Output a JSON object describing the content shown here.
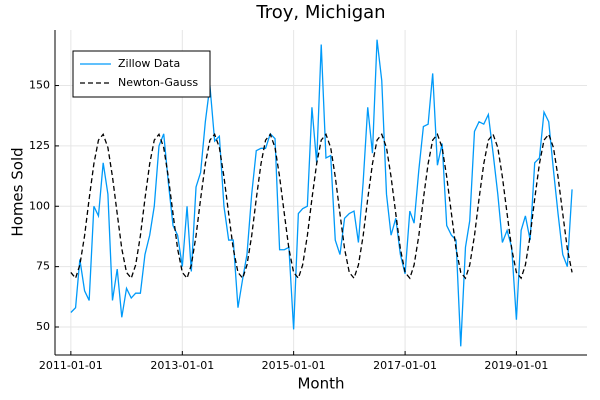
{
  "chart_data": {
    "type": "line",
    "title": "Troy, Michigan",
    "x_label": "Month",
    "y_label": "Homes Sold",
    "x": [
      "2011-01-01",
      "2011-02-01",
      "2011-03-01",
      "2011-04-01",
      "2011-05-01",
      "2011-06-01",
      "2011-07-01",
      "2011-08-01",
      "2011-09-01",
      "2011-10-01",
      "2011-11-01",
      "2011-12-01",
      "2012-01-01",
      "2012-02-01",
      "2012-03-01",
      "2012-04-01",
      "2012-05-01",
      "2012-06-01",
      "2012-07-01",
      "2012-08-01",
      "2012-09-01",
      "2012-10-01",
      "2012-11-01",
      "2012-12-01",
      "2013-01-01",
      "2013-02-01",
      "2013-03-01",
      "2013-04-01",
      "2013-05-01",
      "2013-06-01",
      "2013-07-01",
      "2013-08-01",
      "2013-09-01",
      "2013-10-01",
      "2013-11-01",
      "2013-12-01",
      "2014-01-01",
      "2014-02-01",
      "2014-03-01",
      "2014-04-01",
      "2014-05-01",
      "2014-06-01",
      "2014-07-01",
      "2014-08-01",
      "2014-09-01",
      "2014-10-01",
      "2014-11-01",
      "2014-12-01",
      "2015-01-01",
      "2015-02-01",
      "2015-03-01",
      "2015-04-01",
      "2015-05-01",
      "2015-06-01",
      "2015-07-01",
      "2015-08-01",
      "2015-09-01",
      "2015-10-01",
      "2015-11-01",
      "2015-12-01",
      "2016-01-01",
      "2016-02-01",
      "2016-03-01",
      "2016-04-01",
      "2016-05-01",
      "2016-06-01",
      "2016-07-01",
      "2016-08-01",
      "2016-09-01",
      "2016-10-01",
      "2016-11-01",
      "2016-12-01",
      "2017-01-01",
      "2017-02-01",
      "2017-03-01",
      "2017-04-01",
      "2017-05-01",
      "2017-06-01",
      "2017-07-01",
      "2017-08-01",
      "2017-09-01",
      "2017-10-01",
      "2017-11-01",
      "2017-12-01",
      "2018-01-01",
      "2018-02-01",
      "2018-03-01",
      "2018-04-01",
      "2018-05-01",
      "2018-06-01",
      "2018-07-01",
      "2018-08-01",
      "2018-09-01",
      "2018-10-01",
      "2018-11-01",
      "2018-12-01",
      "2019-01-01",
      "2019-02-01",
      "2019-03-01",
      "2019-04-01",
      "2019-05-01",
      "2019-06-01",
      "2019-07-01",
      "2019-08-01",
      "2019-09-01",
      "2019-10-01",
      "2019-11-01",
      "2019-12-01",
      "2020-01-01"
    ],
    "series": [
      {
        "name": "Zillow Data",
        "color": "#009af9",
        "linestyle": "solid",
        "values": [
          56,
          58,
          78,
          65,
          61,
          100,
          96,
          118,
          105,
          61,
          74,
          54,
          66,
          62,
          64,
          64,
          80,
          88,
          100,
          125,
          130,
          110,
          92,
          88,
          75,
          100,
          73,
          108,
          114,
          135,
          150,
          127,
          129,
          100,
          86,
          86,
          58,
          70,
          80,
          105,
          123,
          124,
          124,
          130,
          128,
          82,
          82,
          83,
          49,
          97,
          99,
          100,
          141,
          118,
          167,
          120,
          121,
          86,
          80,
          95,
          97,
          98,
          85,
          110,
          141,
          122,
          169,
          152,
          105,
          88,
          95,
          80,
          72,
          98,
          93,
          115,
          133,
          134,
          155,
          117,
          126,
          92,
          88,
          86,
          42,
          83,
          94,
          131,
          135,
          134,
          138,
          122,
          105,
          85,
          90,
          83,
          53,
          90,
          96,
          86,
          118,
          120,
          139,
          135,
          115,
          97,
          80,
          75,
          107
        ]
      },
      {
        "name": "Newton-Gauss",
        "color": "#000000",
        "linestyle": "dashed",
        "values": [
          72.6,
          70.2,
          75.7,
          87.8,
          103.1,
          117.6,
          127.4,
          129.8,
          124.3,
          112.2,
          96.9,
          82.4,
          72.6,
          70.2,
          75.7,
          87.8,
          103.1,
          117.6,
          127.4,
          129.8,
          124.3,
          112.2,
          96.9,
          82.4,
          72.6,
          70.2,
          75.7,
          87.8,
          103.1,
          117.6,
          127.4,
          129.8,
          124.3,
          112.2,
          96.9,
          82.4,
          72.6,
          70.2,
          75.7,
          87.8,
          103.1,
          117.6,
          127.4,
          129.8,
          124.3,
          112.2,
          96.9,
          82.4,
          72.6,
          70.2,
          75.7,
          87.8,
          103.1,
          117.6,
          127.4,
          129.8,
          124.3,
          112.2,
          96.9,
          82.4,
          72.6,
          70.2,
          75.7,
          87.8,
          103.1,
          117.6,
          127.4,
          129.8,
          124.3,
          112.2,
          96.9,
          82.4,
          72.6,
          70.2,
          75.7,
          87.8,
          103.1,
          117.6,
          127.4,
          129.8,
          124.3,
          112.2,
          96.9,
          82.4,
          72.6,
          70.2,
          75.7,
          87.8,
          103.1,
          117.6,
          127.4,
          129.8,
          124.3,
          112.2,
          96.9,
          82.4,
          72.6,
          70.2,
          75.7,
          87.8,
          103.1,
          117.6,
          127.4,
          129.8,
          124.3,
          112.2,
          96.9,
          82.4,
          72.6
        ]
      }
    ],
    "xlim": [
      "2010-09-19",
      "2020-04-08"
    ],
    "xticks": [
      "2011-01-01",
      "2013-01-01",
      "2015-01-01",
      "2017-01-01",
      "2019-01-01"
    ],
    "ylim": [
      38.4,
      173
    ],
    "yticks": [
      50,
      75,
      100,
      125,
      150
    ],
    "grid": true,
    "legend": "top-left"
  }
}
